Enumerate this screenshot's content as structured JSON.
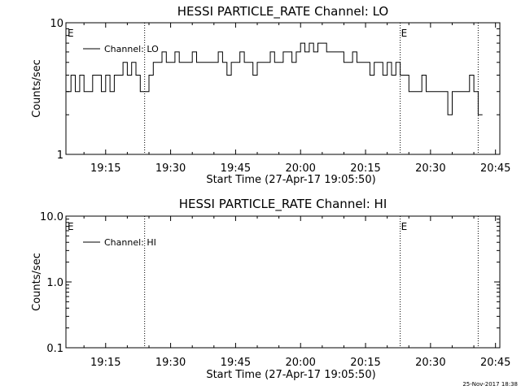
{
  "chart_data": [
    {
      "type": "line",
      "title": "HESSI PARTICLE_RATE Channel: LO",
      "xlabel": "Start Time (27-Apr-17 19:05:50)",
      "ylabel": "Counts/sec",
      "yscale": "log",
      "ylim": [
        1,
        10
      ],
      "yticks": [
        1,
        10
      ],
      "ytick_labels": [
        "1",
        "10"
      ],
      "xlim": [
        "19:05:50",
        "20:46:00"
      ],
      "xtick_labels": [
        "19:15",
        "19:30",
        "19:45",
        "20:00",
        "20:15",
        "20:30",
        "20:45"
      ],
      "grid": false,
      "legend": {
        "position": "top-left",
        "entries": [
          "Channel: LO"
        ]
      },
      "event_markers": [
        {
          "time": "19:05:50",
          "label": "E"
        },
        {
          "time": "19:24:00",
          "label": ""
        },
        {
          "time": "20:23:00",
          "label": "E"
        },
        {
          "time": "20:41:00",
          "label": ""
        }
      ],
      "series": [
        {
          "name": "Channel: LO",
          "x": [
            "19:06:00",
            "19:07:00",
            "19:08:00",
            "19:09:00",
            "19:10:00",
            "19:11:00",
            "19:12:00",
            "19:13:00",
            "19:14:00",
            "19:15:00",
            "19:16:00",
            "19:17:00",
            "19:18:00",
            "19:19:00",
            "19:20:00",
            "19:21:00",
            "19:22:00",
            "19:23:00",
            "19:24:00",
            "19:25:00",
            "19:26:00",
            "19:27:00",
            "19:28:00",
            "19:29:00",
            "19:30:00",
            "19:31:00",
            "19:32:00",
            "19:33:00",
            "19:34:00",
            "19:35:00",
            "19:36:00",
            "19:37:00",
            "19:38:00",
            "19:39:00",
            "19:40:00",
            "19:41:00",
            "19:42:00",
            "19:43:00",
            "19:44:00",
            "19:45:00",
            "19:46:00",
            "19:47:00",
            "19:48:00",
            "19:49:00",
            "19:50:00",
            "19:51:00",
            "19:52:00",
            "19:53:00",
            "19:54:00",
            "19:55:00",
            "19:56:00",
            "19:57:00",
            "19:58:00",
            "19:59:00",
            "20:00:00",
            "20:01:00",
            "20:02:00",
            "20:03:00",
            "20:04:00",
            "20:05:00",
            "20:06:00",
            "20:07:00",
            "20:08:00",
            "20:09:00",
            "20:10:00",
            "20:11:00",
            "20:12:00",
            "20:13:00",
            "20:14:00",
            "20:15:00",
            "20:16:00",
            "20:17:00",
            "20:18:00",
            "20:19:00",
            "20:20:00",
            "20:21:00",
            "20:22:00",
            "20:23:00",
            "20:24:00",
            "20:25:00",
            "20:26:00",
            "20:27:00",
            "20:28:00",
            "20:29:00",
            "20:30:00",
            "20:31:00",
            "20:32:00",
            "20:33:00",
            "20:34:00",
            "20:35:00",
            "20:36:00",
            "20:37:00",
            "20:38:00",
            "20:39:00",
            "20:40:00",
            "20:41:00"
          ],
          "y": [
            3,
            4,
            3,
            4,
            3,
            3,
            4,
            4,
            3,
            4,
            3,
            4,
            4,
            5,
            4,
            5,
            4,
            3,
            3,
            4,
            5,
            5,
            6,
            5,
            5,
            6,
            5,
            5,
            5,
            6,
            5,
            5,
            5,
            5,
            5,
            6,
            5,
            4,
            5,
            5,
            6,
            5,
            5,
            4,
            5,
            5,
            5,
            6,
            5,
            5,
            6,
            6,
            5,
            6,
            7,
            6,
            7,
            6,
            7,
            7,
            6,
            6,
            6,
            6,
            5,
            5,
            6,
            5,
            5,
            5,
            4,
            5,
            5,
            4,
            5,
            4,
            5,
            4,
            4,
            3,
            3,
            3,
            4,
            3,
            3,
            3,
            3,
            3,
            2,
            3,
            3,
            3,
            3,
            4,
            3,
            2
          ]
        }
      ]
    },
    {
      "type": "line",
      "title": "HESSI PARTICLE_RATE Channel: HI",
      "xlabel": "Start Time (27-Apr-17 19:05:50)",
      "ylabel": "Counts/sec",
      "yscale": "log",
      "ylim": [
        0.1,
        10
      ],
      "yticks": [
        0.1,
        1,
        10
      ],
      "ytick_labels": [
        "0.1",
        "1.0",
        "10.0"
      ],
      "xlim": [
        "19:05:50",
        "20:46:00"
      ],
      "xtick_labels": [
        "19:15",
        "19:30",
        "19:45",
        "20:00",
        "20:15",
        "20:30",
        "20:45"
      ],
      "grid": false,
      "legend": {
        "position": "top-left",
        "entries": [
          "Channel: HI"
        ]
      },
      "event_markers": [
        {
          "time": "19:05:50",
          "label": "E"
        },
        {
          "time": "19:24:00",
          "label": ""
        },
        {
          "time": "20:23:00",
          "label": "E"
        },
        {
          "time": "20:41:00",
          "label": ""
        }
      ],
      "series": [
        {
          "name": "Channel: HI",
          "x": [],
          "y": []
        }
      ]
    }
  ],
  "footer": {
    "timestamp": "25-Nov-2017 18:38"
  }
}
